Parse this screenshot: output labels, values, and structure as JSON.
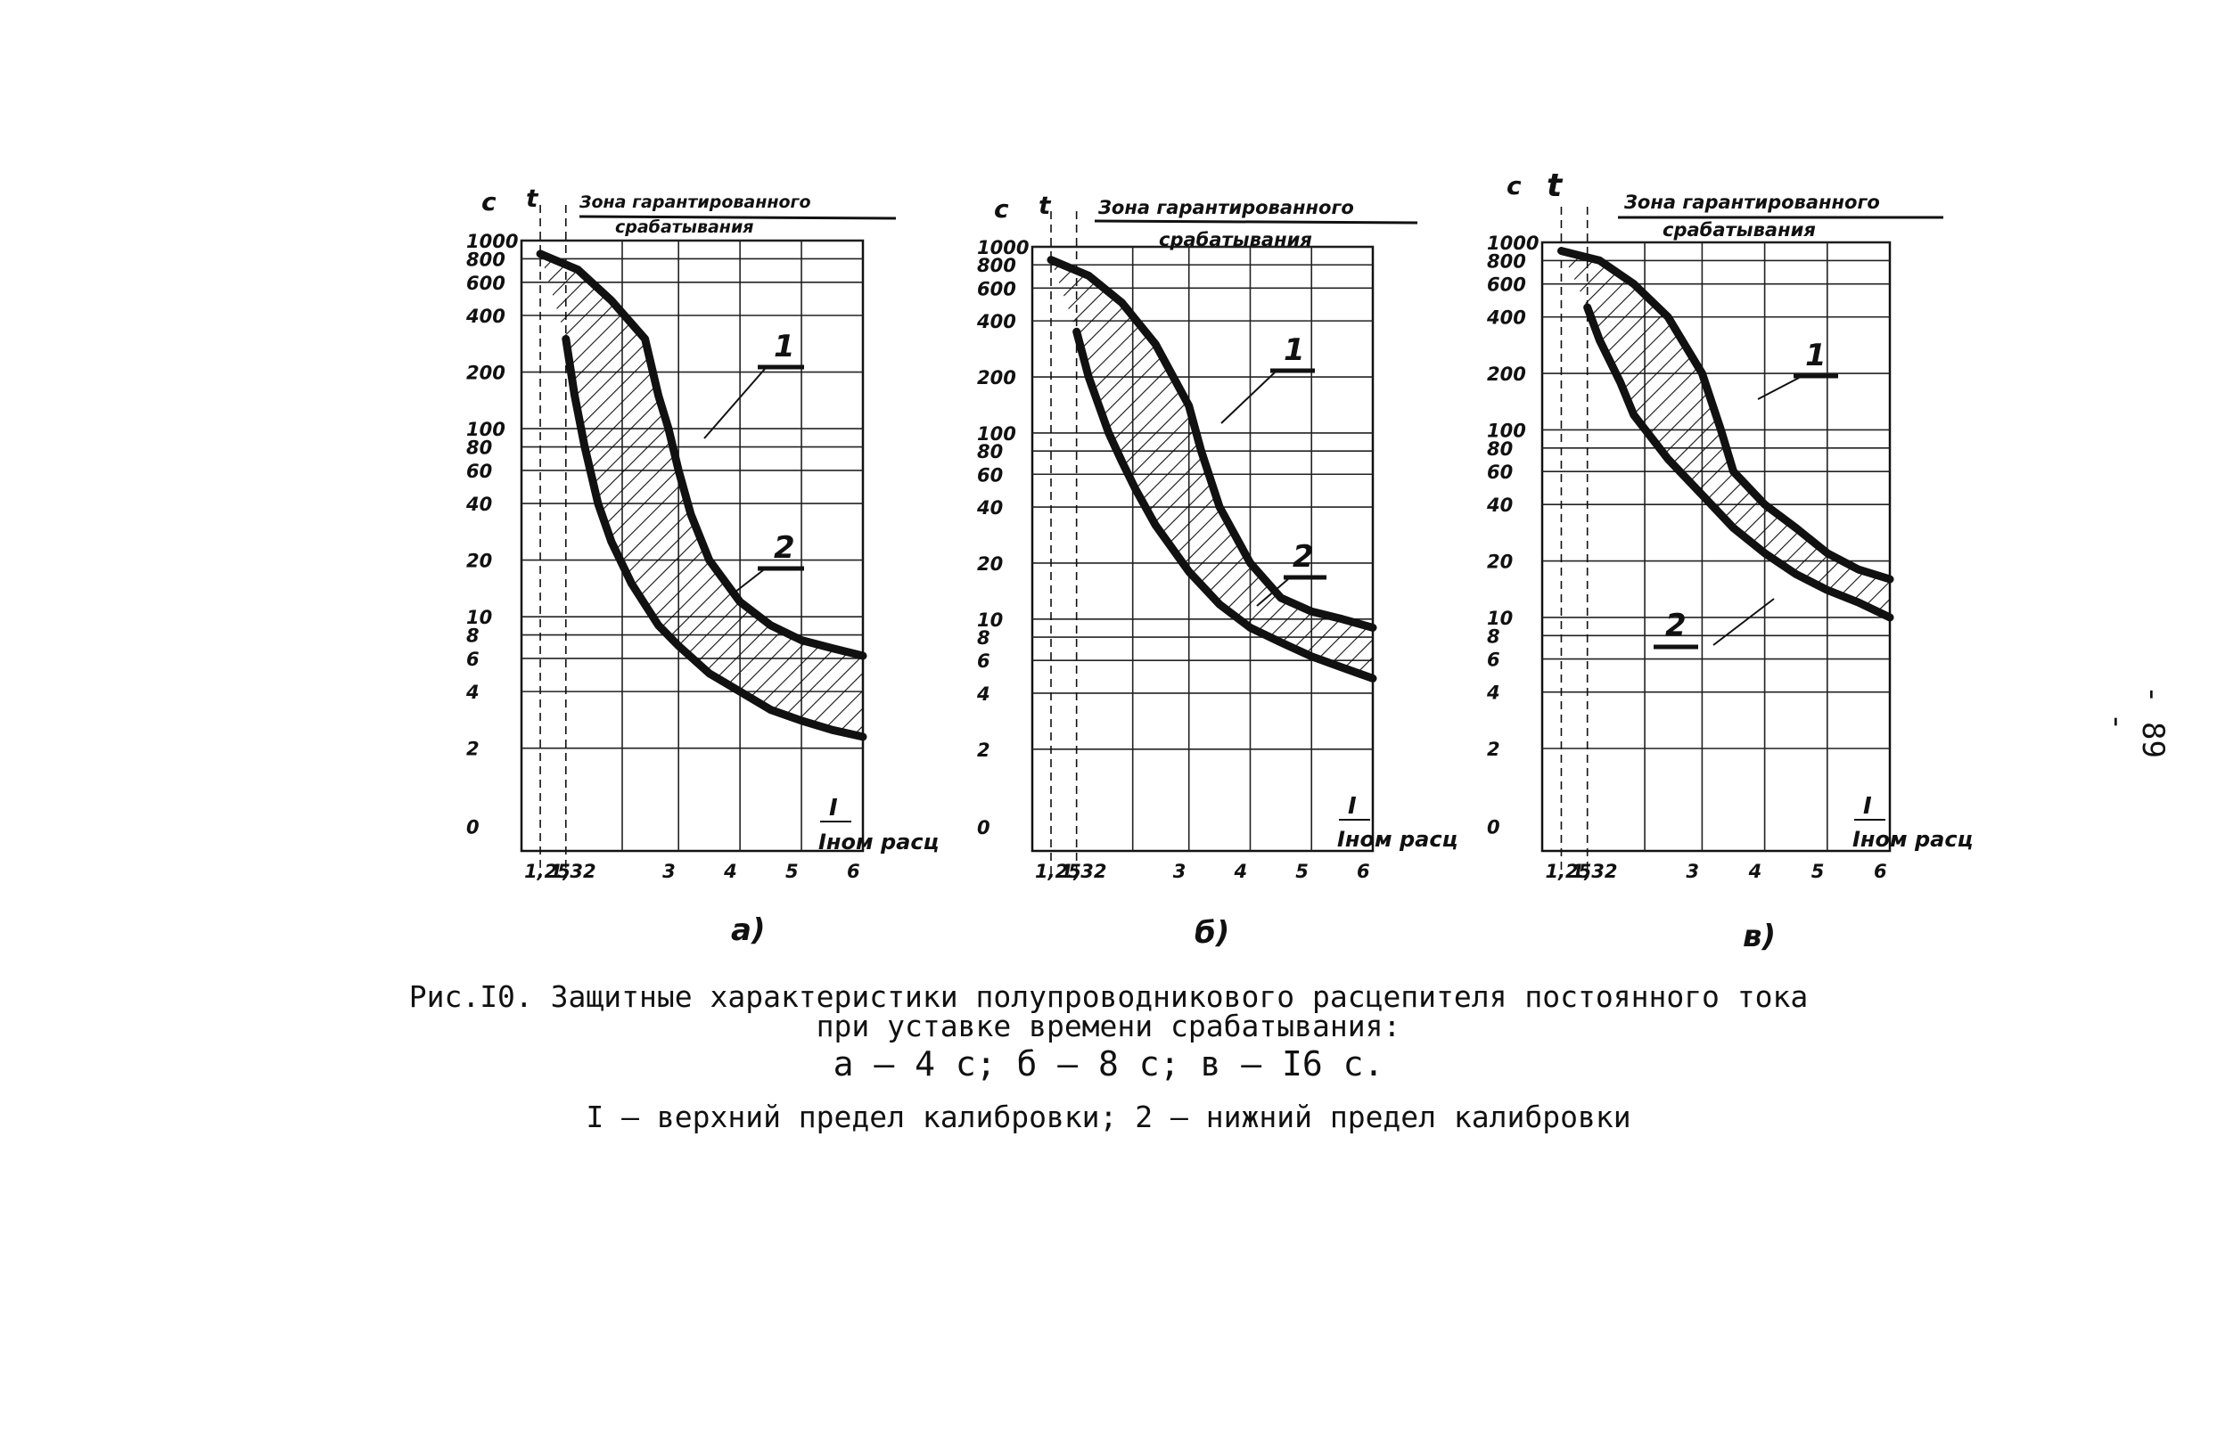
{
  "page_number": "- 89 -",
  "caption": {
    "title": "Рис.I0. Защитные характеристики полупроводникового расцепителя постоянного тока",
    "title_line2": "при уставке времени срабатывания:",
    "settings": "а – 4 с; б – 8 с; в – I6 с.",
    "legend": "I – верхний предел калибровки; 2 – нижний предел калибровки"
  },
  "chart_data": [
    {
      "type": "line",
      "panel_label": "а)",
      "time_setting": "4 с",
      "zone_label_line1": "Зона гарантированного",
      "zone_label_line2": "срабатывания",
      "y_unit": "с",
      "y_symbol": "t",
      "xlabel_num": "I",
      "xlabel_den": "Iном расц",
      "x_tick_labels": [
        "1,25",
        "1,32",
        "3",
        "4",
        "5",
        "6"
      ],
      "y_tick_labels": [
        "1000",
        "800",
        "600",
        "400",
        "200",
        "100",
        "80",
        "60",
        "40",
        "20",
        "10",
        "8",
        "6",
        "4",
        "2",
        "0"
      ],
      "xlim": [
        1,
        6
      ],
      "series": [
        {
          "name": "1",
          "x": [
            1.25,
            1.5,
            2.0,
            2.5,
            2.7,
            2.85,
            3.0,
            3.2,
            3.5,
            4.0,
            4.5,
            5.0,
            5.5,
            6.0
          ],
          "y": [
            850,
            700,
            480,
            300,
            150,
            100,
            60,
            35,
            20,
            12,
            9,
            7.5,
            6.8,
            6.2
          ]
        },
        {
          "name": "2",
          "x": [
            1.32,
            1.45,
            1.6,
            1.8,
            2.0,
            2.3,
            2.7,
            3.0,
            3.5,
            4.0,
            4.5,
            5.0,
            5.5,
            6.0
          ],
          "y": [
            300,
            150,
            80,
            40,
            25,
            15,
            9,
            7,
            5,
            4,
            3.2,
            2.8,
            2.5,
            2.3
          ]
        }
      ]
    },
    {
      "type": "line",
      "panel_label": "б)",
      "time_setting": "8 с",
      "zone_label_line1": "Зона гарантированного",
      "zone_label_line2": "срабатывания",
      "y_unit": "с",
      "y_symbol": "t",
      "xlabel_num": "I",
      "xlabel_den": "Iном расц",
      "x_tick_labels": [
        "1,25",
        "1,32",
        "3",
        "4",
        "5",
        "6"
      ],
      "y_tick_labels": [
        "1000",
        "800",
        "600",
        "400",
        "200",
        "100",
        "80",
        "60",
        "40",
        "20",
        "10",
        "8",
        "6",
        "4",
        "2",
        "0"
      ],
      "xlim": [
        1,
        6
      ],
      "series": [
        {
          "name": "1",
          "x": [
            1.25,
            1.5,
            2.0,
            2.5,
            3.0,
            3.2,
            3.5,
            4.0,
            4.5,
            5.0,
            5.5,
            6.0
          ],
          "y": [
            850,
            700,
            500,
            300,
            140,
            80,
            40,
            20,
            13,
            11,
            10,
            9
          ]
        },
        {
          "name": "2",
          "x": [
            1.32,
            1.5,
            1.8,
            2.0,
            2.2,
            2.5,
            3.0,
            3.5,
            4.0,
            4.5,
            5.0,
            5.5,
            6.0
          ],
          "y": [
            350,
            200,
            100,
            70,
            50,
            32,
            18,
            12,
            9,
            7.5,
            6.3,
            5.5,
            4.8
          ]
        }
      ]
    },
    {
      "type": "line",
      "panel_label": "в)",
      "time_setting": "16 с",
      "zone_label_line1": "Зона гарантированного",
      "zone_label_line2": "срабатывания",
      "y_unit": "с",
      "y_symbol": "t",
      "xlabel_num": "I",
      "xlabel_den": "Iном расц",
      "x_tick_labels": [
        "1,25",
        "1,32",
        "3",
        "4",
        "5",
        "6"
      ],
      "y_tick_labels": [
        "1000",
        "800",
        "600",
        "400",
        "200",
        "100",
        "80",
        "60",
        "40",
        "20",
        "10",
        "8",
        "6",
        "4",
        "2",
        "0"
      ],
      "xlim": [
        1,
        6
      ],
      "series": [
        {
          "name": "1",
          "x": [
            1.25,
            1.5,
            2.0,
            2.5,
            3.0,
            3.3,
            3.5,
            4.0,
            4.5,
            5.0,
            5.5,
            6.0
          ],
          "y": [
            900,
            800,
            600,
            400,
            200,
            100,
            60,
            40,
            30,
            22,
            18,
            16
          ]
        },
        {
          "name": "2",
          "x": [
            1.32,
            1.5,
            1.8,
            2.0,
            2.5,
            3.0,
            3.5,
            4.0,
            4.5,
            5.0,
            5.5,
            6.0
          ],
          "y": [
            450,
            300,
            180,
            120,
            70,
            45,
            30,
            22,
            17,
            14,
            12,
            10
          ]
        }
      ]
    }
  ]
}
